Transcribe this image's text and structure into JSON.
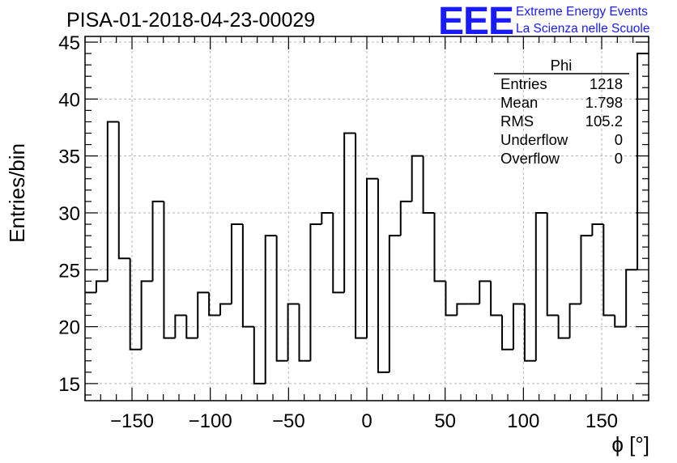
{
  "header": {
    "title": "PISA-01-2018-04-23-00029",
    "logo_mark": "EEE",
    "logo_line1": "Extreme Energy Events",
    "logo_line2": "La Scienza nelle Scuole",
    "logo_color": "#1a1aff"
  },
  "stats": {
    "name": "Phi",
    "rows": [
      {
        "label": "Entries",
        "value": "1218"
      },
      {
        "label": "Mean",
        "value": "1.798"
      },
      {
        "label": "RMS",
        "value": "105.2"
      },
      {
        "label": "Underflow",
        "value": "0"
      },
      {
        "label": "Overflow",
        "value": "0"
      }
    ]
  },
  "chart_data": {
    "type": "bar",
    "histogram": true,
    "title": "PISA-01-2018-04-23-00029",
    "xlabel": "ϕ [°]",
    "ylabel": "Entries/bin",
    "xlim": [
      -180,
      180
    ],
    "ylim": [
      13.5,
      45.5
    ],
    "bin_width": 7.2,
    "x_ticks": [
      -150,
      -100,
      -50,
      0,
      50,
      100,
      150
    ],
    "x_tick_labels": [
      "−150",
      "−100",
      "−50",
      "0",
      "50",
      "100",
      "150"
    ],
    "y_ticks": [
      15,
      20,
      25,
      30,
      35,
      40,
      45
    ],
    "y_tick_labels": [
      "15",
      "20",
      "25",
      "30",
      "35",
      "40",
      "45"
    ],
    "grid": true,
    "legend": "top-right",
    "values": [
      23,
      24,
      38,
      26,
      18,
      24,
      31,
      19,
      21,
      19,
      23,
      21,
      22,
      29,
      20,
      15,
      28,
      17,
      22,
      17,
      29,
      30,
      23,
      37,
      19,
      33,
      16,
      28,
      31,
      35,
      30,
      24,
      21,
      22,
      22,
      24,
      21,
      18,
      22,
      17,
      30,
      21,
      19,
      22,
      28,
      29,
      21,
      20,
      25,
      44
    ]
  }
}
